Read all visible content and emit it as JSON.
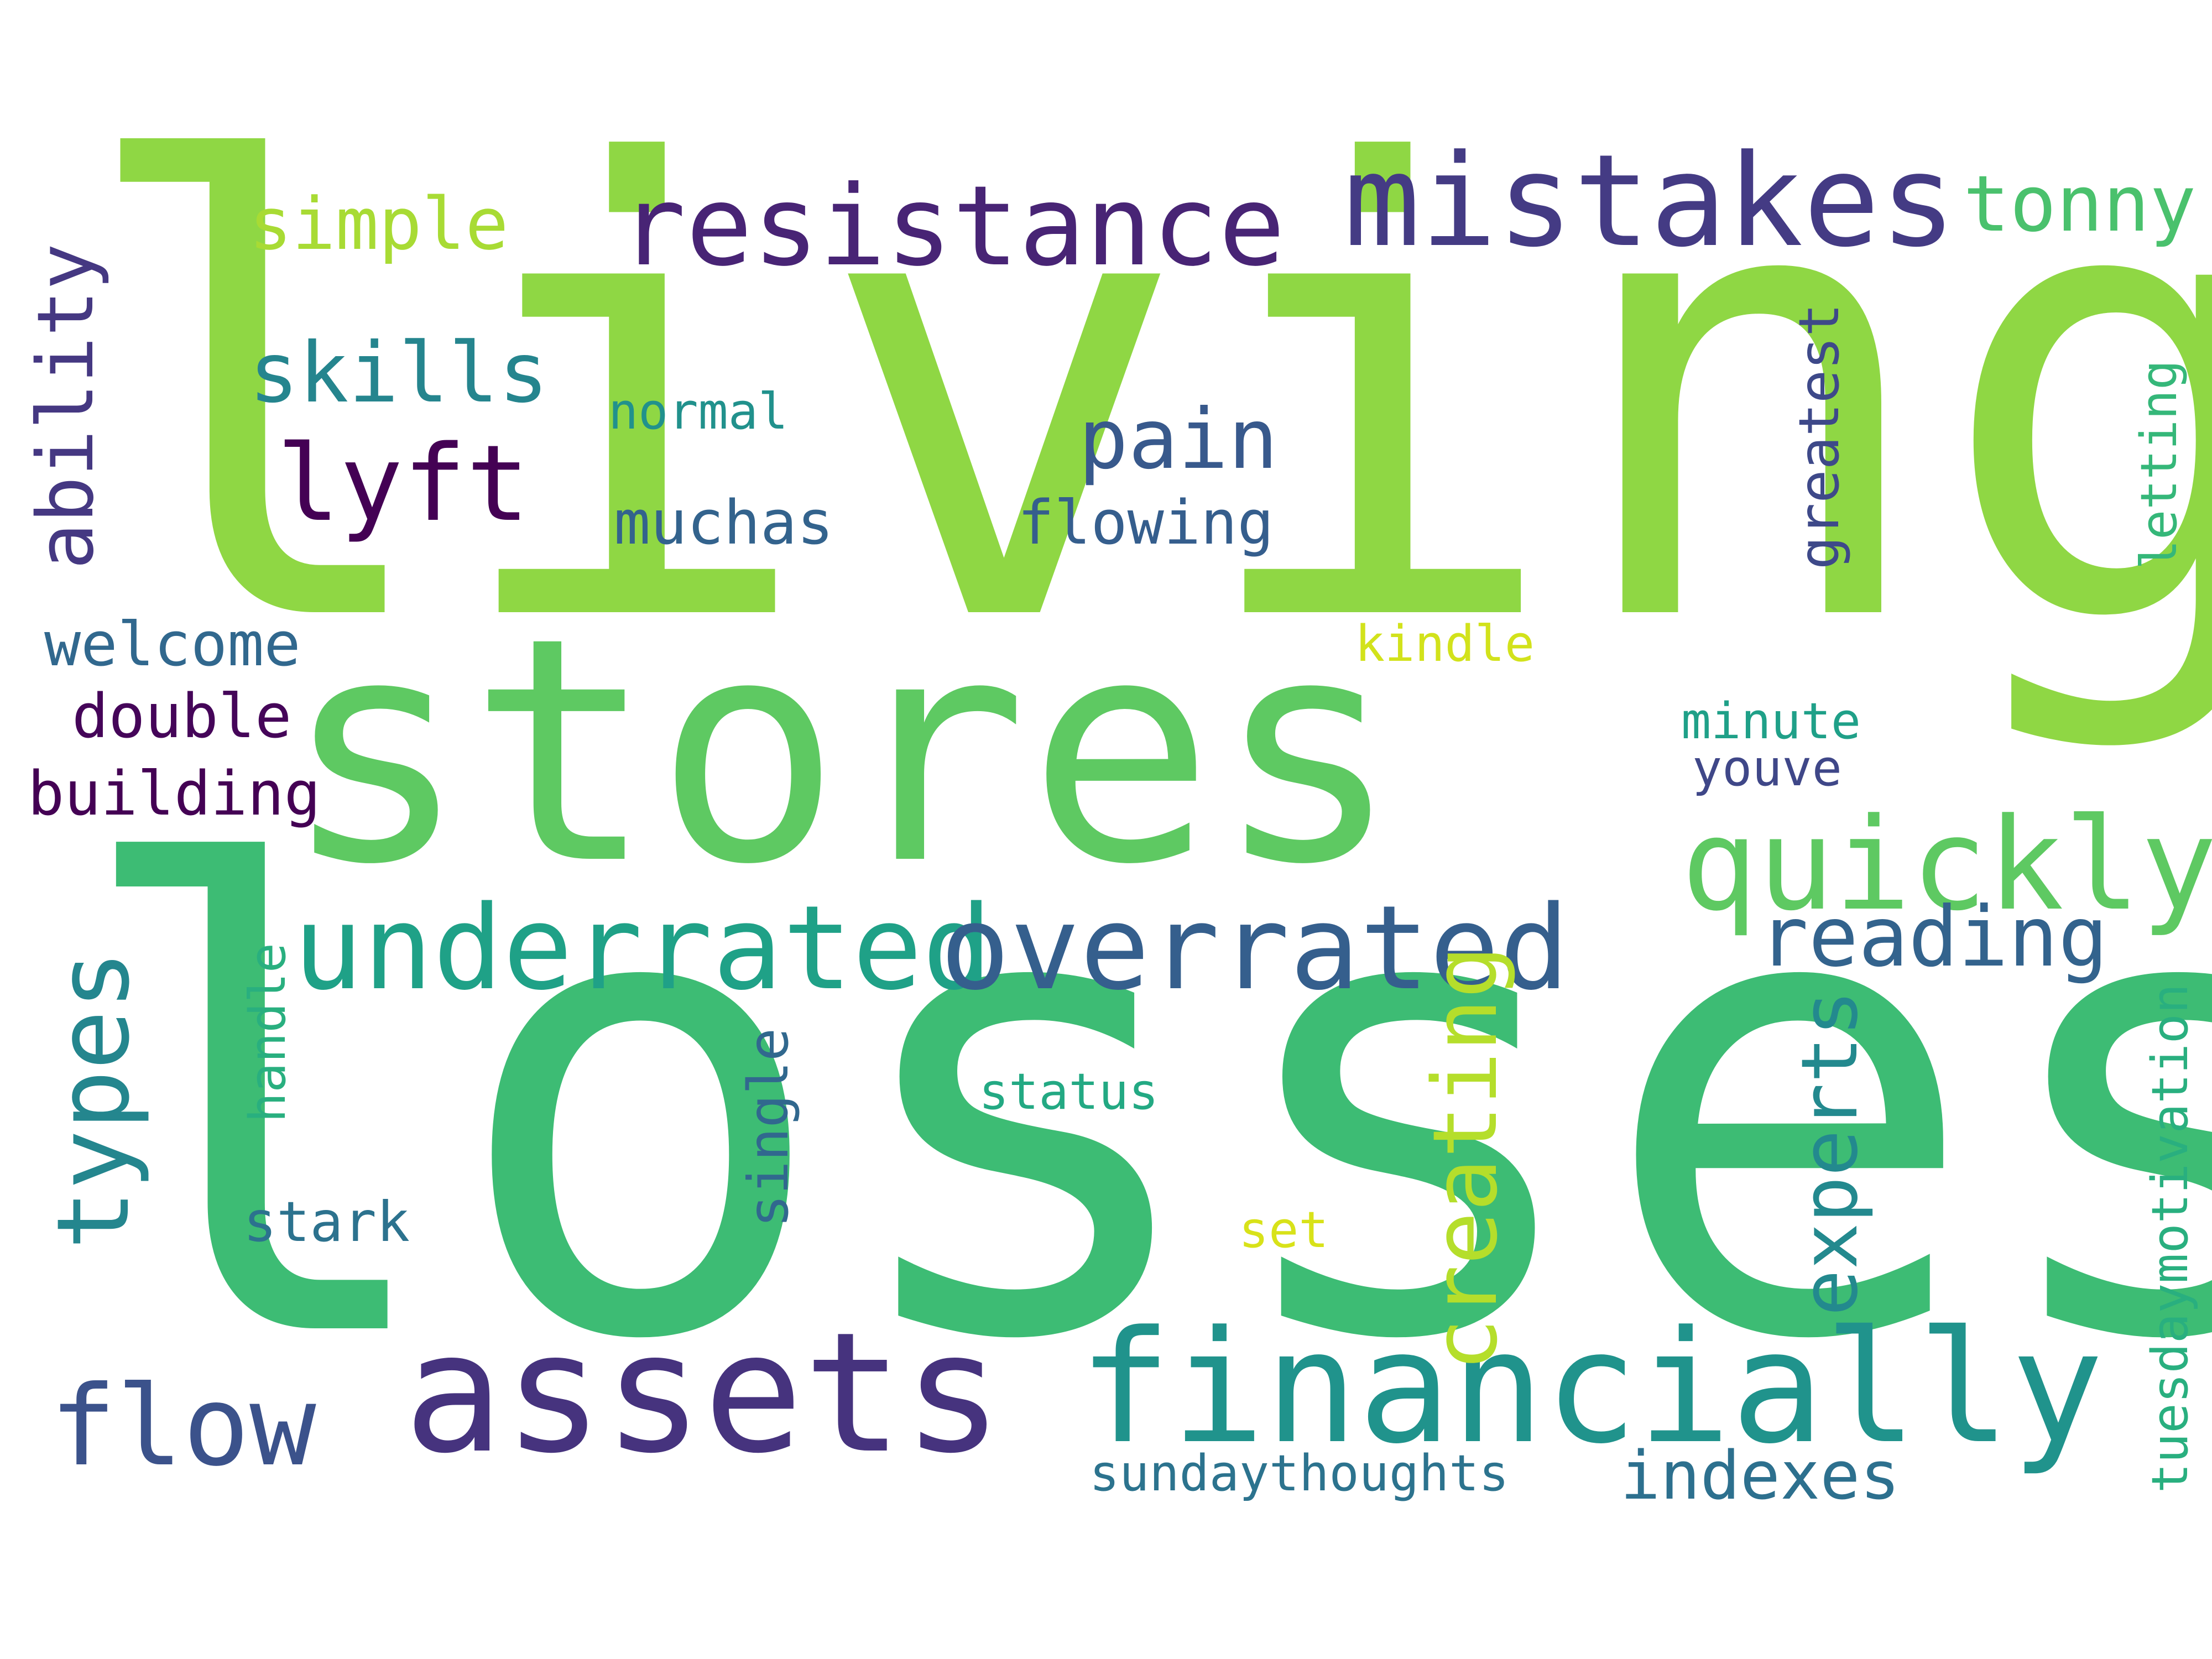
{
  "words": [
    {
      "text": "living",
      "color": "#8fd744"
    },
    {
      "text": "stores",
      "color": "#5ec962"
    },
    {
      "text": "losses",
      "color": "#3dbc74"
    },
    {
      "text": "resistance",
      "color": "#482475"
    },
    {
      "text": "mistakes",
      "color": "#443b84"
    },
    {
      "text": "simple",
      "color": "#a8db34"
    },
    {
      "text": "tonny",
      "color": "#4ac16d"
    },
    {
      "text": "skills",
      "color": "#25858e"
    },
    {
      "text": "lyft",
      "color": "#440154"
    },
    {
      "text": "normal",
      "color": "#21918c"
    },
    {
      "text": "pain",
      "color": "#38598c"
    },
    {
      "text": "muchas",
      "color": "#33638d"
    },
    {
      "text": "flowing",
      "color": "#355e8d"
    },
    {
      "text": "welcome",
      "color": "#31688e"
    },
    {
      "text": "kindle",
      "color": "#d2e21b"
    },
    {
      "text": "double",
      "color": "#450559"
    },
    {
      "text": "minute",
      "color": "#1fa088"
    },
    {
      "text": "youve",
      "color": "#3f4788"
    },
    {
      "text": "building",
      "color": "#440154"
    },
    {
      "text": "quickly",
      "color": "#5ec962"
    },
    {
      "text": "underrated",
      "color": "#1fa187"
    },
    {
      "text": "overrated",
      "color": "#355f8d"
    },
    {
      "text": "reading",
      "color": "#33638d"
    },
    {
      "text": "status",
      "color": "#23a983"
    },
    {
      "text": "stark",
      "color": "#2c728e"
    },
    {
      "text": "set",
      "color": "#d8e219"
    },
    {
      "text": "flow",
      "color": "#3b528b"
    },
    {
      "text": "assets",
      "color": "#46337e"
    },
    {
      "text": "financially",
      "color": "#20938c"
    },
    {
      "text": "sundaythoughts",
      "color": "#2c738e"
    },
    {
      "text": "indexes",
      "color": "#2d708e"
    },
    {
      "text": "ability",
      "color": "#453882"
    },
    {
      "text": "greatest",
      "color": "#3e4989"
    },
    {
      "text": "letting",
      "color": "#35b779"
    },
    {
      "text": "types",
      "color": "#24868e"
    },
    {
      "text": "handle",
      "color": "#29af7f"
    },
    {
      "text": "single",
      "color": "#31688e"
    },
    {
      "text": "creating",
      "color": "#b5de2b"
    },
    {
      "text": "experts",
      "color": "#23898e"
    },
    {
      "text": "tuesdaymotivation",
      "color": "#29af7f"
    }
  ]
}
